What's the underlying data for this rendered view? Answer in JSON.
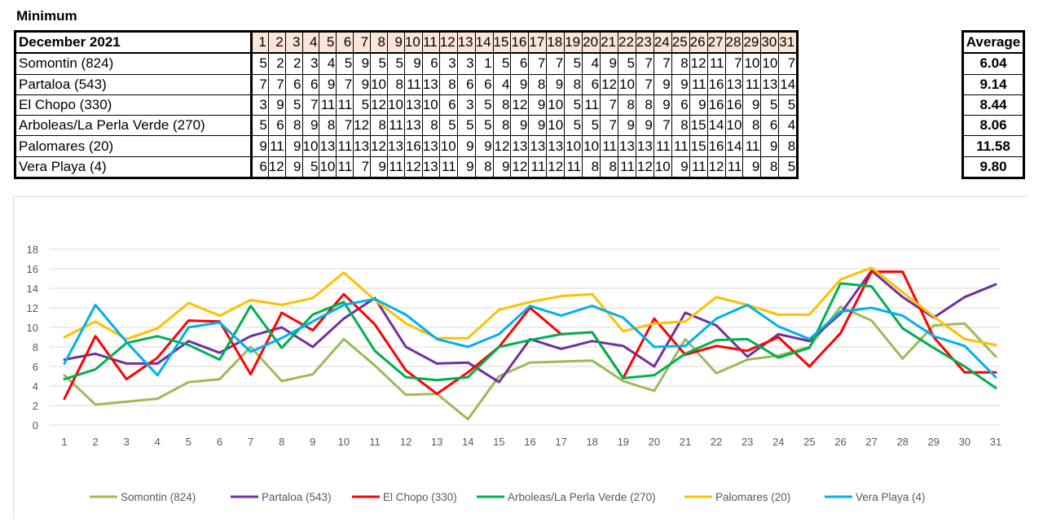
{
  "title": "Minimum",
  "table": {
    "header_label": "December 2021",
    "average_label": "Average",
    "days": [
      "1",
      "2",
      "3",
      "4",
      "5",
      "6",
      "7",
      "8",
      "9",
      "10",
      "11",
      "12",
      "13",
      "14",
      "15",
      "16",
      "17",
      "18",
      "19",
      "20",
      "21",
      "22",
      "23",
      "24",
      "25",
      "26",
      "27",
      "28",
      "29",
      "30",
      "31"
    ],
    "rows": [
      {
        "name": "Somontin (824)",
        "values": [
          "5",
          "2",
          "2",
          "3",
          "4",
          "5",
          "9",
          "5",
          "5",
          "9",
          "6",
          "3",
          "3",
          "1",
          "5",
          "6",
          "7",
          "7",
          "5",
          "4",
          "9",
          "5",
          "7",
          "7",
          "8",
          "12",
          "11",
          "7",
          "10",
          "10",
          "7"
        ],
        "average": "6.04"
      },
      {
        "name": "Partaloa (543)",
        "values": [
          "7",
          "7",
          "6",
          "6",
          "9",
          "7",
          "9",
          "10",
          "8",
          "11",
          "13",
          "8",
          "6",
          "6",
          "4",
          "9",
          "8",
          "9",
          "8",
          "6",
          "12",
          "10",
          "7",
          "9",
          "9",
          "11",
          "16",
          "13",
          "11",
          "13",
          "14"
        ],
        "average": "9.14"
      },
      {
        "name": "El Chopo (330)",
        "values": [
          "3",
          "9",
          "5",
          "7",
          "11",
          "11",
          "5",
          "12",
          "10",
          "13",
          "10",
          "6",
          "3",
          "5",
          "8",
          "12",
          "9",
          "10",
          "5",
          "11",
          "7",
          "8",
          "8",
          "9",
          "6",
          "9",
          "16",
          "16",
          "9",
          "5",
          "5"
        ],
        "average": "8.44"
      },
      {
        "name": "Arboleas/La Perla Verde (270)",
        "values": [
          "5",
          "6",
          "8",
          "9",
          "8",
          "7",
          "12",
          "8",
          "11",
          "13",
          "8",
          "5",
          "5",
          "5",
          "8",
          "9",
          "9",
          "10",
          "5",
          "5",
          "7",
          "9",
          "9",
          "7",
          "8",
          "15",
          "14",
          "10",
          "8",
          "6",
          "4"
        ],
        "average": "8.06"
      },
      {
        "name": "Palomares (20)",
        "values": [
          "9",
          "11",
          "9",
          "10",
          "13",
          "11",
          "13",
          "12",
          "13",
          "16",
          "13",
          "10",
          "9",
          "9",
          "12",
          "13",
          "13",
          "13",
          "10",
          "10",
          "11",
          "13",
          "13",
          "11",
          "11",
          "15",
          "16",
          "14",
          "11",
          "9",
          "8"
        ],
        "average": "11.58"
      },
      {
        "name": "Vera Playa (4)",
        "values": [
          "6",
          "12",
          "9",
          "5",
          "10",
          "11",
          "7",
          "9",
          "11",
          "12",
          "13",
          "11",
          "9",
          "8",
          "9",
          "12",
          "11",
          "12",
          "11",
          "8",
          "8",
          "11",
          "12",
          "10",
          "9",
          "11",
          "12",
          "11",
          "9",
          "8",
          "5"
        ],
        "average": "9.80"
      }
    ]
  },
  "chart_data": {
    "type": "line",
    "title": "",
    "xlabel": "",
    "ylabel": "",
    "x": [
      1,
      2,
      3,
      4,
      5,
      6,
      7,
      8,
      9,
      10,
      11,
      12,
      13,
      14,
      15,
      16,
      17,
      18,
      19,
      20,
      21,
      22,
      23,
      24,
      25,
      26,
      27,
      28,
      29,
      30,
      31
    ],
    "ylim": [
      0,
      18
    ],
    "yticks": [
      0,
      2,
      4,
      6,
      8,
      10,
      12,
      14,
      16,
      18
    ],
    "grid": true,
    "legend_position": "bottom",
    "series": [
      {
        "name": "Somontin (824)",
        "color": "#9bbb59",
        "values": [
          5.1,
          2.1,
          2.4,
          2.7,
          4.4,
          4.7,
          8.0,
          4.5,
          5.2,
          8.8,
          6.1,
          3.1,
          3.2,
          0.6,
          5.0,
          6.4,
          6.5,
          6.6,
          4.5,
          3.5,
          8.8,
          5.3,
          6.7,
          7.1,
          8.0,
          12.1,
          10.7,
          6.8,
          10.2,
          10.4,
          7.0
        ]
      },
      {
        "name": "Partaloa (543)",
        "color": "#7030a0",
        "values": [
          6.7,
          7.3,
          6.3,
          6.3,
          8.6,
          7.4,
          9.1,
          10.0,
          8.0,
          10.9,
          13.0,
          8.0,
          6.3,
          6.4,
          4.4,
          8.8,
          7.8,
          8.6,
          8.1,
          6.0,
          11.5,
          10.2,
          7.0,
          9.3,
          8.6,
          11.4,
          15.8,
          13.1,
          11.0,
          13.1,
          14.4
        ]
      },
      {
        "name": "El Chopo (330)",
        "color": "#ff0000",
        "values": [
          2.7,
          9.1,
          4.7,
          6.9,
          10.7,
          10.6,
          5.2,
          11.5,
          9.7,
          13.4,
          10.3,
          5.6,
          3.2,
          5.4,
          8.0,
          12.0,
          9.3,
          9.5,
          4.8,
          10.9,
          7.2,
          8.1,
          7.6,
          9.0,
          6.0,
          9.4,
          15.7,
          15.7,
          9.0,
          5.4,
          5.4
        ]
      },
      {
        "name": "Arboleas/La Perla Verde (270)",
        "color": "#00b050",
        "values": [
          4.7,
          5.7,
          8.4,
          9.1,
          8.2,
          6.7,
          12.2,
          7.9,
          11.3,
          12.6,
          7.6,
          4.9,
          4.6,
          4.9,
          8.0,
          8.7,
          9.3,
          9.5,
          4.8,
          5.1,
          7.3,
          8.7,
          8.8,
          6.9,
          7.9,
          14.5,
          14.2,
          9.9,
          7.9,
          6.0,
          3.8
        ]
      },
      {
        "name": "Palomares (20)",
        "color": "#ffc000",
        "values": [
          9.0,
          10.6,
          8.8,
          9.9,
          12.5,
          11.2,
          12.8,
          12.3,
          13.0,
          15.6,
          12.8,
          10.4,
          8.9,
          8.9,
          11.8,
          12.6,
          13.2,
          13.4,
          9.6,
          10.4,
          10.6,
          13.1,
          12.3,
          11.3,
          11.3,
          14.9,
          16.1,
          13.6,
          11.1,
          8.8,
          8.2
        ]
      },
      {
        "name": "Vera Playa (4)",
        "color": "#00b0f0",
        "values": [
          6.3,
          12.3,
          8.5,
          5.1,
          10.0,
          10.5,
          7.5,
          8.9,
          10.6,
          12.3,
          12.9,
          11.3,
          8.8,
          8.0,
          9.3,
          12.2,
          11.2,
          12.2,
          11.0,
          8.0,
          8.1,
          10.9,
          12.3,
          10.1,
          8.8,
          11.6,
          12.0,
          11.2,
          9.1,
          8.1,
          4.9
        ]
      }
    ]
  }
}
